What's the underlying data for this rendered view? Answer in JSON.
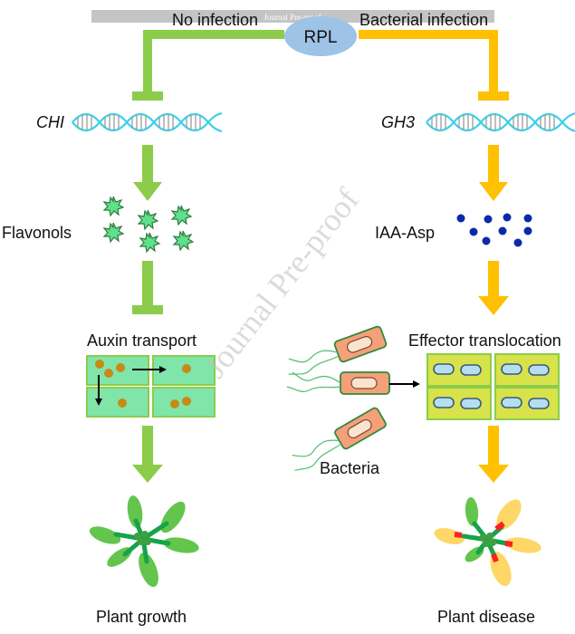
{
  "banner": {
    "text": "Journal Pre-proof"
  },
  "watermark": {
    "text": "Journal Pre-proof"
  },
  "center": {
    "node": "RPL"
  },
  "left": {
    "header": "No infection",
    "gene": "CHI",
    "metabolite": "Flavonols",
    "process": "Auxin transport",
    "outcome": "Plant growth"
  },
  "right": {
    "header": "Bacterial infection",
    "gene": "GH3",
    "metabolite": "IAA-Asp",
    "process": "Effector translocation",
    "pathogen": "Bacteria",
    "outcome": "Plant disease"
  },
  "colors": {
    "left_arrow": "#8ccc4b",
    "right_arrow": "#ffc000",
    "rpl_fill": "#9dc3e6",
    "dna": "#3fd0e8",
    "flavonol": "#5ee08f",
    "iaa_asp": "#0b2aa8",
    "cell_left": "#80e5a8",
    "cell_right": "#d8e24a",
    "leaf_green": "#63c54c",
    "leaf_yellow": "#ffd766",
    "lesion_red": "#ff1f1f"
  }
}
